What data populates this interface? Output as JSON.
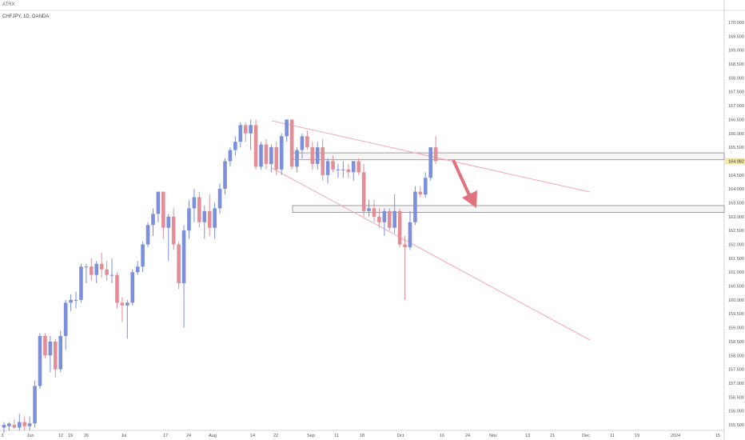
{
  "topbar": {
    "label": "ATRX"
  },
  "chart_data": {
    "type": "candlestick",
    "symbol_label": "CHFJPY, 1D, OANDA",
    "price_axis": {
      "ticks": [
        "170.000",
        "169.500",
        "169.000",
        "168.500",
        "168.000",
        "167.500",
        "167.000",
        "166.500",
        "166.000",
        "165.500",
        "165.000",
        "164.500",
        "164.000",
        "163.500",
        "163.000",
        "162.500",
        "162.000",
        "161.500",
        "161.000",
        "160.500",
        "160.000",
        "159.500",
        "159.000",
        "158.500",
        "158.000",
        "157.500",
        "157.000",
        "156.500",
        "156.000",
        "155.500"
      ],
      "range": [
        155.2,
        170.4
      ],
      "current_price_label": "164.982"
    },
    "time_axis": {
      "labels": [
        "3",
        "Jun",
        "12",
        "19",
        "26",
        "Jul",
        "17",
        "24",
        "Aug",
        "14",
        "22",
        "Sep",
        "11",
        "18",
        "Oct",
        "16",
        "24",
        "Nov",
        "13",
        "21",
        "Dec",
        "11",
        "19",
        "2024",
        "15"
      ]
    },
    "candles": [
      {
        "o": 155.4,
        "h": 155.6,
        "l": 155.2,
        "c": 155.5
      },
      {
        "o": 155.45,
        "h": 155.6,
        "l": 155.3,
        "c": 155.55
      },
      {
        "o": 155.5,
        "h": 155.7,
        "l": 155.35,
        "c": 155.4
      },
      {
        "o": 155.4,
        "h": 155.9,
        "l": 155.3,
        "c": 155.6
      },
      {
        "o": 155.6,
        "h": 155.8,
        "l": 155.3,
        "c": 155.45
      },
      {
        "o": 155.45,
        "h": 155.8,
        "l": 155.3,
        "c": 155.55
      },
      {
        "o": 155.55,
        "h": 157.1,
        "l": 155.4,
        "c": 156.9
      },
      {
        "o": 156.9,
        "h": 158.8,
        "l": 156.8,
        "c": 158.7
      },
      {
        "o": 158.7,
        "h": 158.8,
        "l": 157.9,
        "c": 158.0
      },
      {
        "o": 158.0,
        "h": 158.7,
        "l": 157.4,
        "c": 158.5
      },
      {
        "o": 158.5,
        "h": 158.6,
        "l": 157.2,
        "c": 157.5
      },
      {
        "o": 157.5,
        "h": 158.9,
        "l": 157.4,
        "c": 158.7
      },
      {
        "o": 158.7,
        "h": 160.0,
        "l": 158.2,
        "c": 159.9
      },
      {
        "o": 159.9,
        "h": 160.2,
        "l": 159.6,
        "c": 160.0
      },
      {
        "o": 160.0,
        "h": 160.3,
        "l": 159.7,
        "c": 160.0
      },
      {
        "o": 160.0,
        "h": 161.3,
        "l": 159.9,
        "c": 161.2
      },
      {
        "o": 161.2,
        "h": 161.3,
        "l": 160.6,
        "c": 161.2
      },
      {
        "o": 161.2,
        "h": 161.5,
        "l": 160.7,
        "c": 160.9
      },
      {
        "o": 160.9,
        "h": 161.4,
        "l": 160.6,
        "c": 161.3
      },
      {
        "o": 161.3,
        "h": 161.7,
        "l": 160.8,
        "c": 161.1
      },
      {
        "o": 161.1,
        "h": 161.4,
        "l": 160.7,
        "c": 160.9
      },
      {
        "o": 160.9,
        "h": 161.5,
        "l": 160.6,
        "c": 160.9
      },
      {
        "o": 160.9,
        "h": 161.0,
        "l": 159.7,
        "c": 159.9
      },
      {
        "o": 159.9,
        "h": 160.1,
        "l": 159.2,
        "c": 159.8
      },
      {
        "o": 159.8,
        "h": 160.0,
        "l": 158.6,
        "c": 159.9
      },
      {
        "o": 159.9,
        "h": 161.1,
        "l": 159.8,
        "c": 161.0
      },
      {
        "o": 161.0,
        "h": 161.4,
        "l": 160.9,
        "c": 161.2
      },
      {
        "o": 161.2,
        "h": 162.1,
        "l": 161.0,
        "c": 162.0
      },
      {
        "o": 162.0,
        "h": 162.8,
        "l": 161.9,
        "c": 162.7
      },
      {
        "o": 162.7,
        "h": 163.3,
        "l": 162.3,
        "c": 163.1
      },
      {
        "o": 163.1,
        "h": 163.9,
        "l": 162.8,
        "c": 163.9
      },
      {
        "o": 163.9,
        "h": 163.9,
        "l": 162.2,
        "c": 162.6
      },
      {
        "o": 162.6,
        "h": 163.1,
        "l": 161.4,
        "c": 163.0
      },
      {
        "o": 163.0,
        "h": 163.3,
        "l": 161.8,
        "c": 162.0
      },
      {
        "o": 162.0,
        "h": 162.1,
        "l": 160.4,
        "c": 160.6
      },
      {
        "o": 160.6,
        "h": 162.7,
        "l": 159.0,
        "c": 162.5
      },
      {
        "o": 162.5,
        "h": 163.6,
        "l": 162.2,
        "c": 163.3
      },
      {
        "o": 163.3,
        "h": 164.0,
        "l": 162.8,
        "c": 163.7
      },
      {
        "o": 163.7,
        "h": 163.9,
        "l": 162.6,
        "c": 162.8
      },
      {
        "o": 162.8,
        "h": 163.4,
        "l": 162.2,
        "c": 163.2
      },
      {
        "o": 163.2,
        "h": 163.8,
        "l": 162.3,
        "c": 162.6
      },
      {
        "o": 162.6,
        "h": 163.5,
        "l": 162.2,
        "c": 163.3
      },
      {
        "o": 163.3,
        "h": 164.2,
        "l": 163.1,
        "c": 164.0
      },
      {
        "o": 164.0,
        "h": 165.1,
        "l": 163.8,
        "c": 165.0
      },
      {
        "o": 165.0,
        "h": 165.5,
        "l": 164.8,
        "c": 165.4
      },
      {
        "o": 165.4,
        "h": 165.9,
        "l": 165.2,
        "c": 165.7
      },
      {
        "o": 165.7,
        "h": 166.4,
        "l": 165.5,
        "c": 166.3
      },
      {
        "o": 166.3,
        "h": 166.4,
        "l": 165.7,
        "c": 166.0
      },
      {
        "o": 166.0,
        "h": 166.5,
        "l": 165.4,
        "c": 166.3
      },
      {
        "o": 166.3,
        "h": 166.5,
        "l": 164.7,
        "c": 164.8
      },
      {
        "o": 164.8,
        "h": 165.7,
        "l": 164.7,
        "c": 165.6
      },
      {
        "o": 165.6,
        "h": 165.8,
        "l": 164.7,
        "c": 164.9
      },
      {
        "o": 164.9,
        "h": 165.6,
        "l": 164.6,
        "c": 165.5
      },
      {
        "o": 165.5,
        "h": 165.7,
        "l": 164.5,
        "c": 164.7
      },
      {
        "o": 164.7,
        "h": 166.0,
        "l": 164.5,
        "c": 165.9
      },
      {
        "o": 165.9,
        "h": 166.5,
        "l": 165.7,
        "c": 166.5
      },
      {
        "o": 166.5,
        "h": 166.5,
        "l": 164.7,
        "c": 164.8
      },
      {
        "o": 164.8,
        "h": 165.5,
        "l": 164.6,
        "c": 165.4
      },
      {
        "o": 165.4,
        "h": 166.0,
        "l": 165.1,
        "c": 165.9
      },
      {
        "o": 165.9,
        "h": 166.1,
        "l": 165.4,
        "c": 165.5
      },
      {
        "o": 165.5,
        "h": 165.7,
        "l": 164.7,
        "c": 164.9
      },
      {
        "o": 164.9,
        "h": 165.7,
        "l": 164.7,
        "c": 165.5
      },
      {
        "o": 165.5,
        "h": 165.8,
        "l": 164.3,
        "c": 164.5
      },
      {
        "o": 164.5,
        "h": 165.1,
        "l": 164.2,
        "c": 165.0
      },
      {
        "o": 165.0,
        "h": 165.2,
        "l": 164.6,
        "c": 164.7
      },
      {
        "o": 164.7,
        "h": 164.9,
        "l": 164.4,
        "c": 164.7
      },
      {
        "o": 164.7,
        "h": 165.0,
        "l": 164.4,
        "c": 164.7
      },
      {
        "o": 164.7,
        "h": 164.9,
        "l": 164.4,
        "c": 164.6
      },
      {
        "o": 164.6,
        "h": 165.0,
        "l": 164.3,
        "c": 165.0
      },
      {
        "o": 165.0,
        "h": 165.1,
        "l": 164.5,
        "c": 164.6
      },
      {
        "o": 164.6,
        "h": 164.9,
        "l": 163.0,
        "c": 163.2
      },
      {
        "o": 163.2,
        "h": 163.6,
        "l": 163.0,
        "c": 163.3
      },
      {
        "o": 163.3,
        "h": 163.6,
        "l": 162.8,
        "c": 163.0
      },
      {
        "o": 163.0,
        "h": 163.3,
        "l": 162.6,
        "c": 162.8
      },
      {
        "o": 162.8,
        "h": 163.3,
        "l": 162.3,
        "c": 163.2
      },
      {
        "o": 163.2,
        "h": 163.3,
        "l": 162.5,
        "c": 162.6
      },
      {
        "o": 162.6,
        "h": 163.8,
        "l": 162.4,
        "c": 163.2
      },
      {
        "o": 163.2,
        "h": 163.3,
        "l": 161.9,
        "c": 162.0
      },
      {
        "o": 162.0,
        "h": 162.3,
        "l": 160.0,
        "c": 161.9
      },
      {
        "o": 161.9,
        "h": 163.2,
        "l": 161.8,
        "c": 162.8
      },
      {
        "o": 162.8,
        "h": 164.1,
        "l": 162.7,
        "c": 163.9
      },
      {
        "o": 163.9,
        "h": 164.1,
        "l": 163.7,
        "c": 163.8
      },
      {
        "o": 163.8,
        "h": 164.6,
        "l": 163.7,
        "c": 164.4
      },
      {
        "o": 164.4,
        "h": 165.5,
        "l": 164.3,
        "c": 165.5
      },
      {
        "o": 165.5,
        "h": 165.9,
        "l": 164.9,
        "c": 165.0
      }
    ],
    "zones": [
      {
        "name": "upper-zone",
        "top": 165.3,
        "bottom": 165.05
      },
      {
        "name": "lower-zone",
        "top": 163.4,
        "bottom": 163.15
      }
    ],
    "colors": {
      "up": "#7b8fdb",
      "down": "#e28d97",
      "trendline": "#f3a9b1",
      "arrow": "#e2727d",
      "zone_border": "#888888",
      "price_badge": "#f3e8a6"
    }
  }
}
